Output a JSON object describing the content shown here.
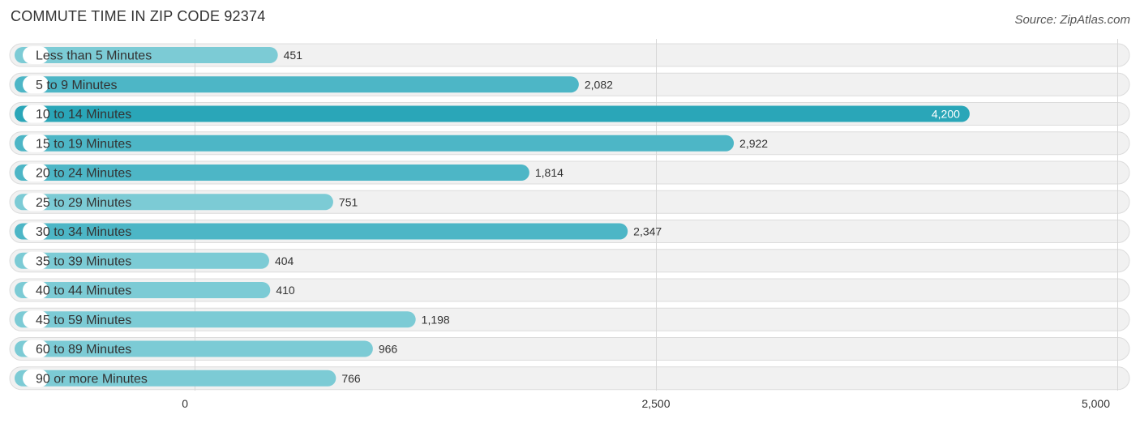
{
  "chart_data": {
    "type": "bar",
    "orientation": "horizontal",
    "title": "COMMUTE TIME IN ZIP CODE 92374",
    "source": "Source: ZipAtlas.com",
    "categories": [
      "Less than 5 Minutes",
      "5 to 9 Minutes",
      "10 to 14 Minutes",
      "15 to 19 Minutes",
      "20 to 24 Minutes",
      "25 to 29 Minutes",
      "30 to 34 Minutes",
      "35 to 39 Minutes",
      "40 to 44 Minutes",
      "45 to 59 Minutes",
      "60 to 89 Minutes",
      "90 or more Minutes"
    ],
    "values": [
      451,
      2082,
      4200,
      2922,
      1814,
      751,
      2347,
      404,
      410,
      1198,
      966,
      766
    ],
    "value_labels": [
      "451",
      "2,082",
      "4,200",
      "2,922",
      "1,814",
      "751",
      "2,347",
      "404",
      "410",
      "1,198",
      "966",
      "766"
    ],
    "xlim": [
      0,
      5000
    ],
    "ticks": [
      0,
      2500,
      5000
    ],
    "tick_labels": [
      "0",
      "2,500",
      "5,000"
    ],
    "grid": true,
    "colors": {
      "max": "#2aa6b8",
      "high": "#4db6c6",
      "low": "#7ccbd5"
    }
  }
}
